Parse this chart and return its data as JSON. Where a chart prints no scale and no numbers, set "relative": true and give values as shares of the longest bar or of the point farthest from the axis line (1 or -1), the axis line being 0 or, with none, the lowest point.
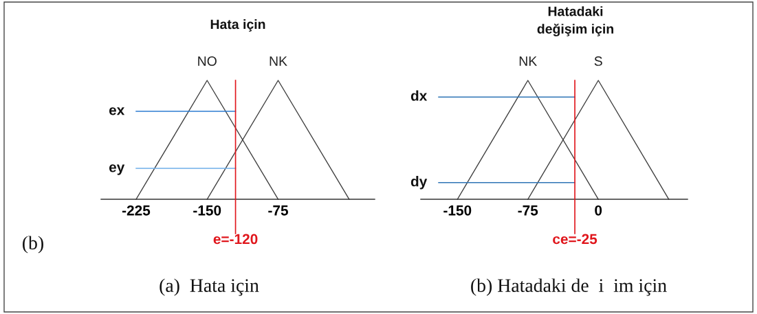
{
  "chart_data": [
    {
      "type": "line",
      "title": "Hata için",
      "relative": true,
      "xlim": [
        -262,
        27
      ],
      "xticks": [
        -225,
        -150,
        -75
      ],
      "tick_labels": "x",
      "series": [
        {
          "name": "NO",
          "color": "#404040",
          "x": [
            -225,
            -150,
            -75
          ],
          "values": [
            0,
            1,
            0
          ]
        },
        {
          "name": "NK",
          "color": "#404040",
          "x": [
            -150,
            -75,
            0
          ],
          "values": [
            0,
            1,
            0
          ]
        },
        {
          "name": "ex",
          "color": "#2b7bd0",
          "x": [
            -225,
            -120
          ],
          "values": [
            0.74,
            0.74
          ]
        },
        {
          "name": "ey",
          "color": "#6eaee8",
          "x": [
            -225,
            -120
          ],
          "values": [
            0.26,
            0.26
          ]
        }
      ],
      "ref_lines": [
        {
          "axis": "x",
          "value": -120,
          "label": "e=-120",
          "color": "#e0161c"
        }
      ],
      "annotations": [
        "(b)",
        "(a)  Hata için"
      ]
    },
    {
      "type": "line",
      "title": "Hatadaki\ndeğişim için",
      "relative": true,
      "xlim": [
        -189,
        95
      ],
      "xticks": [
        -150,
        -75,
        0
      ],
      "tick_labels": "x",
      "series": [
        {
          "name": "NK",
          "color": "#404040",
          "x": [
            -150,
            -75,
            0
          ],
          "values": [
            0,
            1,
            0
          ]
        },
        {
          "name": "S",
          "color": "#404040",
          "x": [
            -75,
            0,
            75
          ],
          "values": [
            0,
            1,
            0
          ]
        },
        {
          "name": "dx",
          "color": "#2e75b6",
          "x": [
            -170,
            -25
          ],
          "values": [
            0.86,
            0.86
          ]
        },
        {
          "name": "dy",
          "color": "#2e75b6",
          "x": [
            -170,
            -25
          ],
          "values": [
            0.14,
            0.14
          ]
        }
      ],
      "ref_lines": [
        {
          "axis": "x",
          "value": -25,
          "label": "ce=-25",
          "color": "#e0161c"
        }
      ],
      "annotations": [
        "(b) Hatadaki de  i  im için"
      ]
    }
  ]
}
